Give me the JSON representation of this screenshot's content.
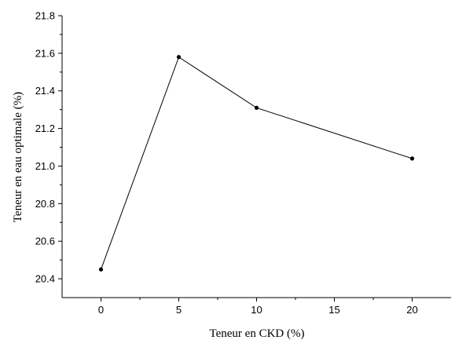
{
  "chart_data": {
    "type": "line",
    "xlabel": "Teneur en CKD (%)",
    "ylabel": "Teneur en eau optimale (%)",
    "xlim": [
      -2.5,
      22.5
    ],
    "ylim": [
      20.3,
      21.8
    ],
    "x_ticks": [
      0,
      5,
      10,
      15,
      20
    ],
    "y_ticks": [
      20.4,
      20.6,
      20.8,
      21.0,
      21.2,
      21.4,
      21.6,
      21.8
    ],
    "x_tick_labels": [
      "0",
      "5",
      "10",
      "15",
      "20"
    ],
    "y_tick_labels": [
      "20.4",
      "20.6",
      "20.8",
      "21.0",
      "21.2",
      "21.4",
      "21.6",
      "21.8"
    ],
    "grid": false,
    "series": [
      {
        "x": [
          0,
          5,
          10,
          20
        ],
        "values": [
          20.45,
          21.58,
          21.31,
          21.04
        ]
      }
    ]
  }
}
